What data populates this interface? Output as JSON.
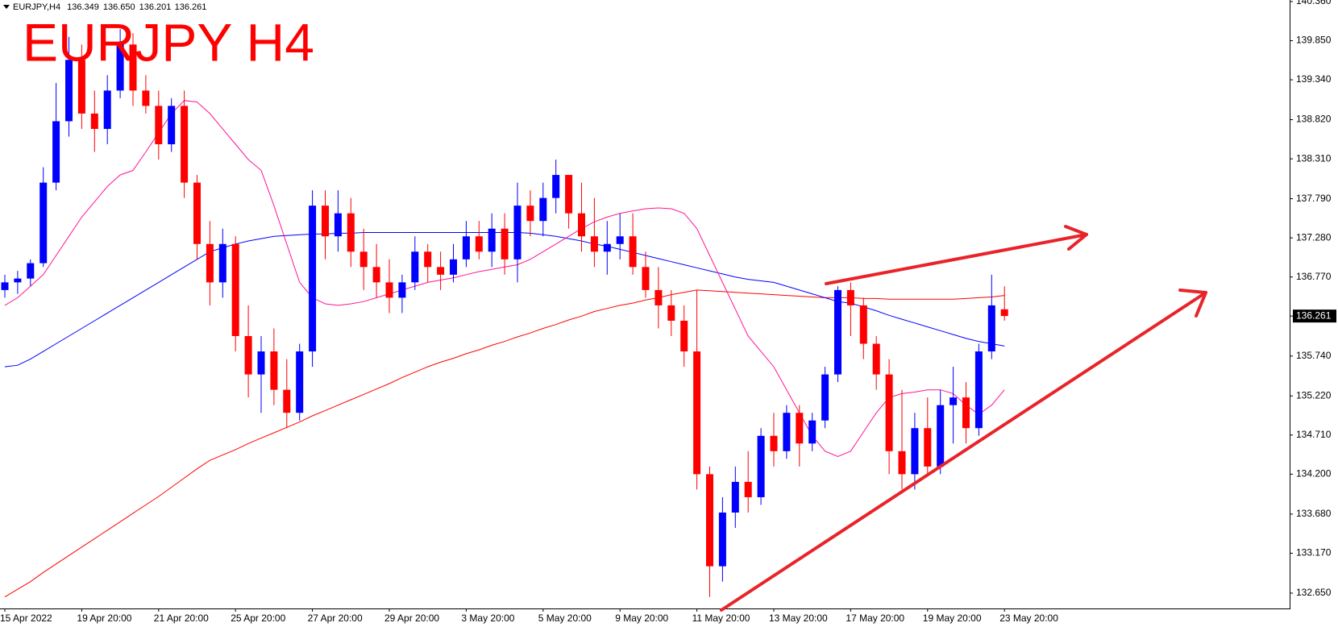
{
  "chart_data": {
    "type": "candlestick",
    "title": "EURJPY H4",
    "symbol": "EURJPY,H4",
    "header_values": [
      "136.349",
      "136.650",
      "136.201",
      "136.261"
    ],
    "categories": [
      "15 Apr 2022",
      null,
      null,
      null,
      null,
      null,
      "19 Apr 20:00",
      null,
      null,
      null,
      null,
      null,
      "21 Apr 20:00",
      null,
      null,
      null,
      null,
      null,
      "25 Apr 20:00",
      null,
      null,
      null,
      null,
      null,
      "27 Apr 20:00",
      null,
      null,
      null,
      null,
      null,
      "29 Apr 20:00",
      null,
      null,
      null,
      null,
      null,
      "3 May 20:00",
      null,
      null,
      null,
      null,
      null,
      "5 May 20:00",
      null,
      null,
      null,
      null,
      null,
      "9 May 20:00",
      null,
      null,
      null,
      null,
      null,
      "11 May 20:00",
      null,
      null,
      null,
      null,
      null,
      "13 May 20:00",
      null,
      null,
      null,
      null,
      null,
      "17 May 20:00",
      null,
      null,
      null,
      null,
      null,
      "19 May 20:00",
      null,
      null,
      null,
      null,
      null,
      "23 May 20:00"
    ],
    "open": [
      136.6,
      136.7,
      136.75,
      136.95,
      138.0,
      138.8,
      139.6,
      138.9,
      138.7,
      139.2,
      139.8,
      139.2,
      139.0,
      138.5,
      139.0,
      138.0,
      137.2,
      136.7,
      137.2,
      136.0,
      135.5,
      135.8,
      135.3,
      135.0,
      135.8,
      137.7,
      137.3,
      137.6,
      137.1,
      136.9,
      136.7,
      136.5,
      136.7,
      137.1,
      136.9,
      136.8,
      137.0,
      137.3,
      137.1,
      137.4,
      137.0,
      137.7,
      137.5,
      137.8,
      138.1,
      137.6,
      137.3,
      137.1,
      137.2,
      137.3,
      136.9,
      136.6,
      136.4,
      136.2,
      135.8,
      134.2,
      133.0,
      133.7,
      134.1,
      133.9,
      134.7,
      134.5,
      135.0,
      134.6,
      134.9,
      135.5,
      136.6,
      136.4,
      135.9,
      135.5,
      134.5,
      134.2,
      134.8,
      134.3,
      135.1,
      135.2,
      134.8,
      135.8,
      136.349
    ],
    "high": [
      136.8,
      136.85,
      137.0,
      138.2,
      139.3,
      139.9,
      139.8,
      139.2,
      139.4,
      140.0,
      139.95,
      139.4,
      139.2,
      139.1,
      139.2,
      138.1,
      137.5,
      137.4,
      137.3,
      136.4,
      136.0,
      136.1,
      135.7,
      135.9,
      137.9,
      137.9,
      137.9,
      137.8,
      137.4,
      137.2,
      137.0,
      136.8,
      137.3,
      137.2,
      137.1,
      137.2,
      137.5,
      137.5,
      137.6,
      137.6,
      138.0,
      137.9,
      138.0,
      138.3,
      138.1,
      138.0,
      137.8,
      137.5,
      137.6,
      137.6,
      137.1,
      136.9,
      136.6,
      136.4,
      136.6,
      134.3,
      133.9,
      134.3,
      134.5,
      134.8,
      135.0,
      135.1,
      135.1,
      135.0,
      135.6,
      136.65,
      136.7,
      136.5,
      136.0,
      135.7,
      135.3,
      135.0,
      135.2,
      135.3,
      135.6,
      135.4,
      135.9,
      136.8,
      136.65
    ],
    "low": [
      136.5,
      136.55,
      136.65,
      136.9,
      137.9,
      138.6,
      138.7,
      138.4,
      138.5,
      139.1,
      139.0,
      138.9,
      138.3,
      138.4,
      137.8,
      137.0,
      136.4,
      136.5,
      135.8,
      135.2,
      135.0,
      135.1,
      134.8,
      134.9,
      135.6,
      137.0,
      137.1,
      136.9,
      136.6,
      136.5,
      136.3,
      136.3,
      136.6,
      136.7,
      136.6,
      136.7,
      136.9,
      137.0,
      136.9,
      136.8,
      136.7,
      137.3,
      137.3,
      137.6,
      137.4,
      137.1,
      136.9,
      136.8,
      137.0,
      136.8,
      136.5,
      136.1,
      136.0,
      135.6,
      134.0,
      132.6,
      132.8,
      133.5,
      133.7,
      133.8,
      134.3,
      134.4,
      134.3,
      134.5,
      134.8,
      135.4,
      136.0,
      135.7,
      135.3,
      134.2,
      134.0,
      134.0,
      134.2,
      134.2,
      134.6,
      134.6,
      134.7,
      135.7,
      136.201
    ],
    "close": [
      136.7,
      136.75,
      136.95,
      138.0,
      138.8,
      139.6,
      138.9,
      138.7,
      139.2,
      139.8,
      139.2,
      139.0,
      138.5,
      139.0,
      138.0,
      137.2,
      136.7,
      137.2,
      136.0,
      135.5,
      135.8,
      135.3,
      135.0,
      135.8,
      137.7,
      137.3,
      137.6,
      137.1,
      136.9,
      136.7,
      136.5,
      136.7,
      137.1,
      136.9,
      136.8,
      137.0,
      137.3,
      137.1,
      137.4,
      137.0,
      137.7,
      137.5,
      137.8,
      138.1,
      137.6,
      137.3,
      137.1,
      137.2,
      137.3,
      136.9,
      136.6,
      136.4,
      136.2,
      135.8,
      134.2,
      133.0,
      133.7,
      134.1,
      133.9,
      134.7,
      134.5,
      135.0,
      134.6,
      134.9,
      135.5,
      136.6,
      136.4,
      135.9,
      135.5,
      134.5,
      134.2,
      134.8,
      134.3,
      135.1,
      135.2,
      134.8,
      135.8,
      136.4,
      136.261
    ],
    "up_color": "#0000ff",
    "down_color": "#ff0000",
    "lines": [
      {
        "color": "#ff0000",
        "values": [
          132.6,
          132.7,
          132.8,
          132.92,
          133.03,
          133.14,
          133.25,
          133.36,
          133.47,
          133.58,
          133.69,
          133.8,
          133.91,
          134.03,
          134.15,
          134.27,
          134.38,
          134.45,
          134.52,
          134.6,
          134.67,
          134.74,
          134.81,
          134.88,
          134.96,
          135.03,
          135.1,
          135.17,
          135.24,
          135.31,
          135.38,
          135.46,
          135.53,
          135.6,
          135.66,
          135.71,
          135.77,
          135.82,
          135.88,
          135.93,
          135.99,
          136.04,
          136.1,
          136.15,
          136.21,
          136.26,
          136.32,
          136.36,
          136.4,
          136.43,
          136.47,
          136.5,
          136.54,
          136.57,
          136.6,
          136.59,
          136.58,
          136.57,
          136.56,
          136.55,
          136.54,
          136.53,
          136.52,
          136.51,
          136.5,
          136.5,
          136.5,
          136.49,
          136.49,
          136.48,
          136.48,
          136.48,
          136.48,
          136.48,
          136.48,
          136.49,
          136.5,
          136.51,
          136.53
        ]
      },
      {
        "color": "#0000ff",
        "values": [
          135.6,
          135.62,
          135.7,
          135.8,
          135.9,
          136.0,
          136.1,
          136.2,
          136.3,
          136.4,
          136.5,
          136.6,
          136.7,
          136.8,
          136.9,
          137.0,
          137.1,
          137.15,
          137.2,
          137.24,
          137.27,
          137.3,
          137.31,
          137.32,
          137.33,
          137.33,
          137.34,
          137.34,
          137.35,
          137.35,
          137.35,
          137.35,
          137.35,
          137.35,
          137.35,
          137.35,
          137.35,
          137.35,
          137.35,
          137.35,
          137.35,
          137.34,
          137.32,
          137.3,
          137.27,
          137.24,
          137.2,
          137.17,
          137.13,
          137.09,
          137.05,
          137.01,
          136.97,
          136.93,
          136.89,
          136.85,
          136.81,
          136.77,
          136.74,
          136.72,
          136.7,
          136.65,
          136.6,
          136.55,
          136.5,
          136.45,
          136.43,
          136.38,
          136.33,
          136.27,
          136.22,
          136.17,
          136.12,
          136.07,
          136.02,
          135.97,
          135.93,
          135.9,
          135.87
        ]
      },
      {
        "color": "#ff1493",
        "values": [
          136.4,
          136.5,
          136.65,
          136.8,
          137.05,
          137.3,
          137.55,
          137.75,
          137.95,
          138.1,
          138.16,
          138.4,
          138.65,
          138.9,
          139.07,
          139.05,
          138.9,
          138.7,
          138.5,
          138.3,
          138.16,
          137.7,
          137.2,
          136.7,
          136.5,
          136.42,
          136.4,
          136.42,
          136.45,
          136.5,
          136.55,
          136.6,
          136.65,
          136.7,
          136.73,
          136.76,
          136.8,
          136.84,
          136.87,
          136.9,
          136.93,
          137.0,
          137.1,
          137.2,
          137.3,
          137.4,
          137.49,
          137.55,
          137.6,
          137.63,
          137.66,
          137.67,
          137.66,
          137.6,
          137.4,
          137.05,
          136.7,
          136.35,
          136.0,
          135.8,
          135.6,
          135.3,
          135.0,
          134.7,
          134.5,
          134.43,
          134.5,
          134.75,
          135.0,
          135.2,
          135.25,
          135.27,
          135.3,
          135.3,
          135.25,
          135.1,
          134.98,
          135.1,
          135.3
        ]
      }
    ],
    "ylim": [
      132.45,
      140.38
    ],
    "yticks": [
      {
        "value": 140.36,
        "label": "140.360"
      },
      {
        "value": 139.85,
        "label": "139.850"
      },
      {
        "value": 139.34,
        "label": "139.340"
      },
      {
        "value": 138.82,
        "label": "138.820"
      },
      {
        "value": 138.31,
        "label": "138.310"
      },
      {
        "value": 137.79,
        "label": "137.790"
      },
      {
        "value": 137.28,
        "label": "137.280"
      },
      {
        "value": 136.77,
        "label": "136.770"
      },
      {
        "value": 135.74,
        "label": "135.740"
      },
      {
        "value": 135.22,
        "label": "135.220"
      },
      {
        "value": 134.71,
        "label": "134.710"
      },
      {
        "value": 134.2,
        "label": "134.200"
      },
      {
        "value": 133.68,
        "label": "133.680"
      },
      {
        "value": 133.17,
        "label": "133.170"
      },
      {
        "value": 132.65,
        "label": "132.650"
      }
    ],
    "price_label": {
      "value": 136.261,
      "label": "136.261"
    }
  }
}
